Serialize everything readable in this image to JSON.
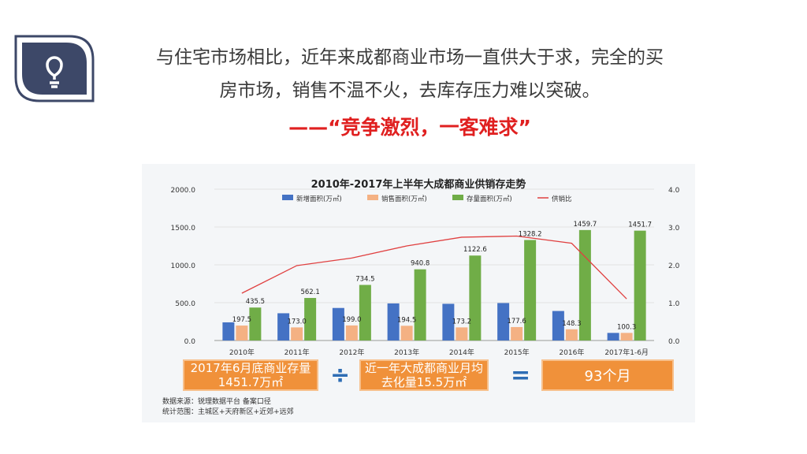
{
  "slide": {
    "heading_line1": "与住宅市场相比，近年来成都商业市场一直供大于求，完全的买",
    "heading_line2": "房市场，销售不温不火，去库存压力难以突破。",
    "quote": "——“竞争激烈，一客难求”",
    "icon": "lightbulb-icon",
    "colors": {
      "navy": "#3d4868",
      "quote_red": "#e02020",
      "orange": "#f0913a",
      "blue_op": "#2e6db4"
    }
  },
  "chart_data": {
    "type": "bar",
    "title": "2010年-2017年上半年大成都商业供销存走势",
    "categories": [
      "2010年",
      "2011年",
      "2012年",
      "2013年",
      "2014年",
      "2015年",
      "2016年",
      "2017年1-6月"
    ],
    "series": [
      {
        "name": "新增面积(万㎡)",
        "color": "#4472c4",
        "values": [
          240,
          360,
          430,
          490,
          485,
          495,
          390,
          100.3
        ]
      },
      {
        "name": "销售面积(万㎡)",
        "color": "#f4b183",
        "values": [
          197.5,
          173.0,
          199.0,
          194.5,
          173.2,
          177.6,
          148.3,
          100.3
        ]
      },
      {
        "name": "存量面积(万㎡)",
        "color": "#70ad47",
        "values": [
          435.5,
          562.1,
          734.5,
          940.8,
          1122.6,
          1328.2,
          1459.7,
          1451.7
        ]
      },
      {
        "name": "供销比",
        "color": "#e04040",
        "type": "line",
        "axis": "right",
        "values": [
          1.25,
          1.98,
          2.18,
          2.5,
          2.73,
          2.76,
          2.57,
          1.1
        ]
      }
    ],
    "sales_labels": [
      "197.5",
      "173.0",
      "199.0",
      "194.5",
      "173.2",
      "177.6",
      "148.3",
      "100.3"
    ],
    "stock_labels": [
      "435.5",
      "562.1",
      "734.5",
      "940.8",
      "1122.6",
      "1328.2",
      "1459.7",
      "1451.7"
    ],
    "ylim_left": [
      0,
      2000
    ],
    "yticks_left": [
      "0.0",
      "500.0",
      "1000.0",
      "1500.0",
      "2000.0"
    ],
    "ylim_right": [
      0,
      4
    ],
    "yticks_right": [
      "0.0",
      "1.0",
      "2.0",
      "3.0",
      "4.0"
    ],
    "legend_position": "top"
  },
  "formula": {
    "box1_line1": "2017年6月底商业存量",
    "box1_line2": "1451.7万㎡",
    "divide": "÷",
    "box2_line1": "近一年大成都商业月均",
    "box2_line2": "去化量15.5万㎡",
    "equals": "=",
    "result": "93个月"
  },
  "source": {
    "line1": "数据来源：锐理数据平台 备案口径",
    "line2": "统计范围：主城区+天府新区+近郊+远郊"
  }
}
